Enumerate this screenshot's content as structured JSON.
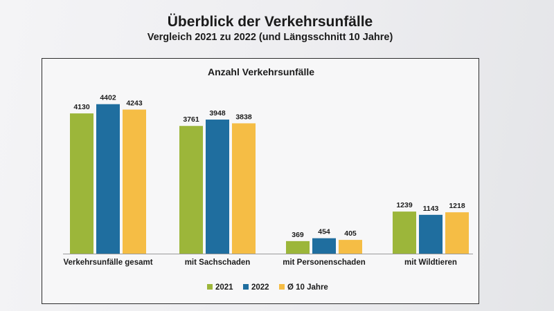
{
  "header": {
    "title": "Überblick der Verkehrsunfälle",
    "subtitle": "Vergleich 2021 zu 2022 (und Längsschnitt 10 Jahre)"
  },
  "chart_data": {
    "type": "bar",
    "title": "Anzahl Verkehrsunfälle",
    "xlabel": "",
    "ylabel": "",
    "ylim": [
      0,
      4600
    ],
    "grid": false,
    "legend_position": "bottom-center",
    "categories": [
      "Verkehrsunfälle gesamt",
      "mit Sachschaden",
      "mit Personenschaden",
      "mit Wildtieren"
    ],
    "series": [
      {
        "name": "2021",
        "color": "#9cb63a",
        "values": [
          4130,
          3761,
          369,
          1239
        ]
      },
      {
        "name": "2022",
        "color": "#1f6e9f",
        "values": [
          4402,
          3948,
          454,
          1143
        ]
      },
      {
        "name": "Ø 10 Jahre",
        "color": "#f5bd45",
        "values": [
          4243,
          3838,
          405,
          1218
        ]
      }
    ]
  }
}
